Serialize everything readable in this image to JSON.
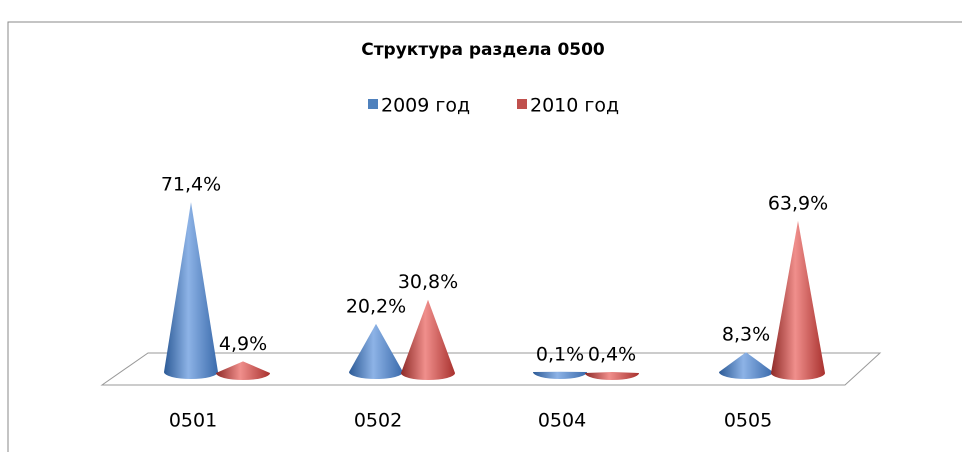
{
  "chart_data": {
    "type": "cone",
    "title": "Структура раздела 0500",
    "categories": [
      "0501",
      "0502",
      "0504",
      "0505"
    ],
    "series": [
      {
        "name": "2009 год",
        "color": "#4f81bd",
        "values": [
          71.4,
          20.2,
          0.1,
          8.3
        ],
        "value_labels": [
          "71,4%",
          "20,2%",
          "0,1%",
          "8,3%"
        ]
      },
      {
        "name": "2010 год",
        "color": "#c0504d",
        "values": [
          4.9,
          30.8,
          0.4,
          63.9
        ],
        "value_labels": [
          "4,9%",
          "30,8%",
          "0,4%",
          "63,9%"
        ]
      }
    ]
  }
}
